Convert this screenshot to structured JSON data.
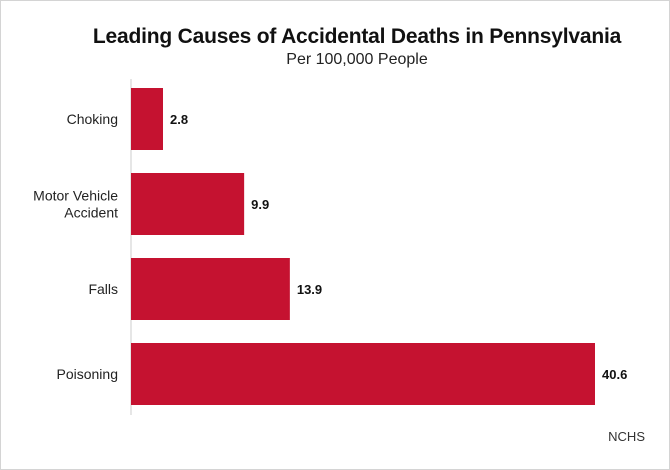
{
  "chart_data": {
    "type": "bar",
    "orientation": "horizontal",
    "title": "Leading Causes of Accidental Deaths in Pennsylvania",
    "subtitle": "Per 100,000 People",
    "categories": [
      "Choking",
      "Motor Vehicle Accident",
      "Falls",
      "Poisoning"
    ],
    "category_lines": [
      [
        "Choking"
      ],
      [
        "Motor Vehicle",
        "Accident"
      ],
      [
        "Falls"
      ],
      [
        "Poisoning"
      ]
    ],
    "values": [
      2.8,
      9.9,
      13.9,
      40.6
    ],
    "value_labels": [
      "2.8",
      "9.9",
      "13.9",
      "40.6"
    ],
    "xlim": [
      0,
      40.6
    ],
    "bar_color": "#c51230",
    "grid": false,
    "legend": "none",
    "source": "NCHS"
  }
}
